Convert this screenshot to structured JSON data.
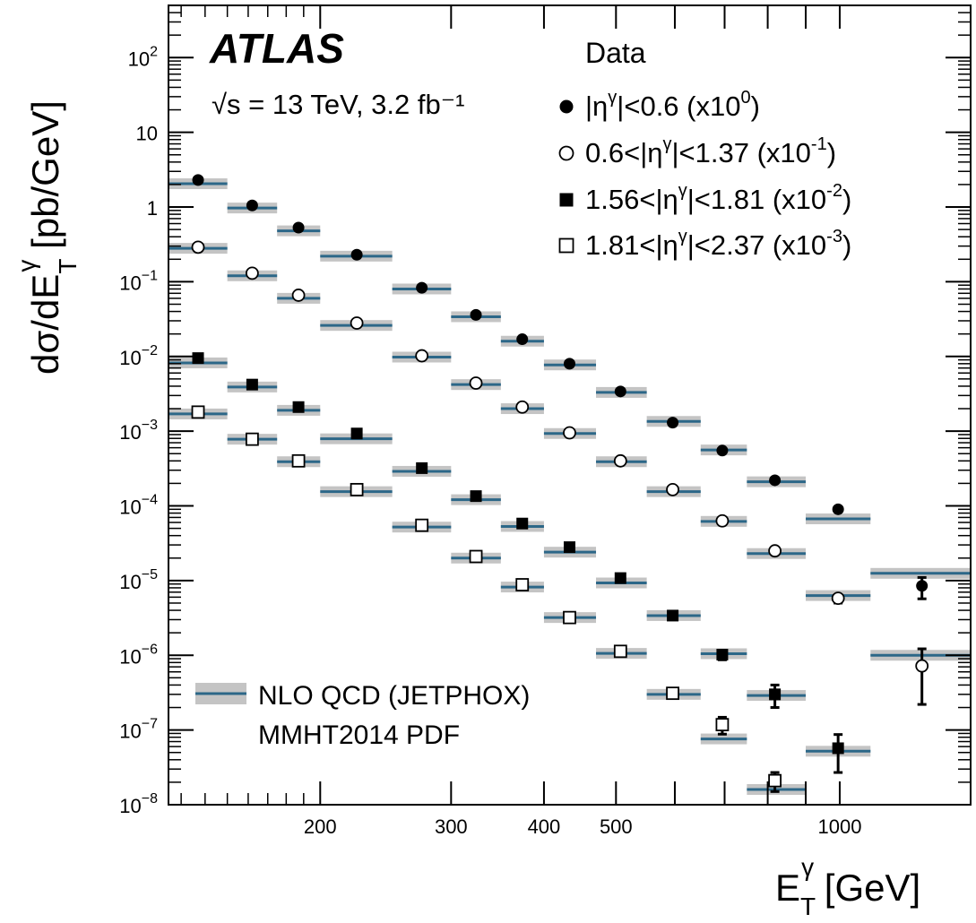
{
  "chart_data": {
    "type": "scatter",
    "experiment": "ATLAS",
    "subtitle": "√s = 13 TeV, 3.2 fb⁻¹",
    "xlabel": "E_T^γ [GeV]",
    "ylabel": "dσ/dE_T^γ [pb/GeV]",
    "x_scale": "log",
    "y_scale": "log",
    "xlim": [
      125,
      1500
    ],
    "ylim": [
      1e-08,
      500
    ],
    "x_ticks": [
      200,
      300,
      400,
      500,
      1000
    ],
    "x_tick_labels": [
      "200",
      "300",
      "400",
      "500",
      "1000"
    ],
    "y_ticks": [
      1e-08,
      1e-07,
      1e-06,
      1e-05,
      0.0001,
      0.001,
      0.01,
      0.1,
      1,
      10,
      100
    ],
    "y_tick_labels": [
      {
        "base": "10",
        "exp": "−8"
      },
      {
        "base": "10",
        "exp": "−7"
      },
      {
        "base": "10",
        "exp": "−6"
      },
      {
        "base": "10",
        "exp": "−5"
      },
      {
        "base": "10",
        "exp": "−4"
      },
      {
        "base": "10",
        "exp": "−3"
      },
      {
        "base": "10",
        "exp": "−2"
      },
      {
        "base": "10",
        "exp": "−1"
      },
      {
        "base": "1",
        "exp": ""
      },
      {
        "base": "10",
        "exp": ""
      },
      {
        "base": "10",
        "exp": "2"
      }
    ],
    "legend_title": "Data",
    "legend_position": "top-right",
    "bins": [
      [
        125,
        150
      ],
      [
        150,
        175
      ],
      [
        175,
        200
      ],
      [
        200,
        250
      ],
      [
        250,
        300
      ],
      [
        300,
        350
      ],
      [
        350,
        400
      ],
      [
        400,
        470
      ],
      [
        470,
        550
      ],
      [
        550,
        650
      ],
      [
        650,
        750
      ],
      [
        750,
        900
      ],
      [
        900,
        1100
      ],
      [
        1100,
        1500
      ]
    ],
    "series": [
      {
        "name": "|η^γ|<0.6 (x10^0)",
        "marker": "filled-circle",
        "x": [
          137,
          162,
          187,
          224,
          274,
          324,
          374,
          433,
          507,
          596,
          695,
          818,
          995,
          1290
        ],
        "y": [
          2.3,
          1.05,
          0.53,
          0.23,
          0.083,
          0.036,
          0.017,
          0.008,
          0.0034,
          0.0013,
          0.00055,
          0.00022,
          9e-05,
          8.5e-06
        ],
        "err_low": [
          0,
          0,
          0,
          0,
          0,
          0,
          0,
          0,
          0,
          0,
          0,
          0,
          0,
          2.8e-06
        ],
        "err_high": [
          0,
          0,
          0,
          0,
          0,
          0,
          0,
          0,
          0,
          0,
          0,
          0,
          0,
          2.5e-06
        ],
        "nlo": [
          2.05,
          0.97,
          0.48,
          0.22,
          0.08,
          0.034,
          0.016,
          0.0077,
          0.0033,
          0.00135,
          0.00056,
          0.00021,
          6.7e-05,
          1.25e-05
        ]
      },
      {
        "name": "0.6<|η^γ|<1.37 (x10^-1)",
        "marker": "open-circle",
        "x": [
          137,
          162,
          187,
          224,
          274,
          324,
          374,
          433,
          507,
          596,
          695,
          818,
          995,
          1290
        ],
        "y": [
          0.29,
          0.13,
          0.066,
          0.028,
          0.0102,
          0.0044,
          0.0021,
          0.00095,
          0.0004,
          0.000165,
          6.3e-05,
          2.5e-05,
          5.8e-06,
          7.2e-07
        ],
        "err_low": [
          0,
          0,
          0,
          0,
          0,
          0,
          0,
          0,
          0,
          0,
          0,
          0,
          8e-07,
          5e-07
        ],
        "err_high": [
          0,
          0,
          0,
          0,
          0,
          0,
          0,
          0,
          0,
          0,
          0,
          0,
          6e-07,
          5e-07
        ],
        "nlo": [
          0.28,
          0.12,
          0.06,
          0.026,
          0.0098,
          0.0042,
          0.002,
          0.00093,
          0.00039,
          0.000155,
          6.2e-05,
          2.3e-05,
          6.3e-06,
          1e-06
        ]
      },
      {
        "name": "1.56<|η^γ|<1.81 (x10^-2)",
        "marker": "filled-square",
        "x": [
          137,
          162,
          187,
          224,
          274,
          324,
          374,
          433,
          507,
          596,
          695,
          818,
          995
        ],
        "y": [
          0.0095,
          0.0042,
          0.0021,
          0.00093,
          0.00032,
          0.000135,
          5.8e-05,
          2.8e-05,
          1.08e-05,
          3.4e-06,
          1.02e-06,
          3e-07,
          5.7e-08
        ],
        "err_low": [
          0,
          0,
          0,
          0,
          0,
          0,
          0,
          0,
          0,
          0,
          1.5e-07,
          1e-07,
          3e-08
        ],
        "err_high": [
          0,
          0,
          0,
          0,
          0,
          0,
          0,
          0,
          0,
          0,
          1.5e-07,
          1e-07,
          3e-08
        ],
        "nlo": [
          0.0082,
          0.0039,
          0.0019,
          0.00079,
          0.00029,
          0.000121,
          5.3e-05,
          2.4e-05,
          9.3e-06,
          3.4e-06,
          1.05e-06,
          2.9e-07,
          5.2e-08
        ]
      },
      {
        "name": "1.81<|η^γ|<2.37 (x10^-3)",
        "marker": "open-square",
        "x": [
          137,
          162,
          187,
          224,
          274,
          324,
          374,
          433,
          507,
          596,
          695,
          818
        ],
        "y": [
          0.0018,
          0.00078,
          0.0004,
          0.000165,
          5.5e-05,
          2.1e-05,
          8.8e-06,
          3.2e-06,
          1.13e-06,
          3.1e-07,
          1.18e-07,
          2.1e-08
        ],
        "err_low": [
          0,
          0,
          0,
          0,
          0,
          0,
          0,
          0,
          0,
          0,
          3e-08,
          6e-09
        ],
        "err_high": [
          0,
          0,
          0,
          0,
          0,
          0,
          0,
          0,
          0,
          0,
          3e-08,
          6e-09
        ],
        "nlo": [
          0.0017,
          0.00078,
          0.00039,
          0.000155,
          5.2e-05,
          2e-05,
          8.2e-06,
          3.2e-06,
          1.06e-06,
          3e-07,
          7.6e-08,
          1.6e-08
        ]
      }
    ],
    "theory": {
      "name": "NLO QCD (JETPHOX)",
      "pdf": "MMHT2014 PDF",
      "line_color": "#2c6788",
      "band_color": "#c4c4c4"
    },
    "grid": false
  }
}
